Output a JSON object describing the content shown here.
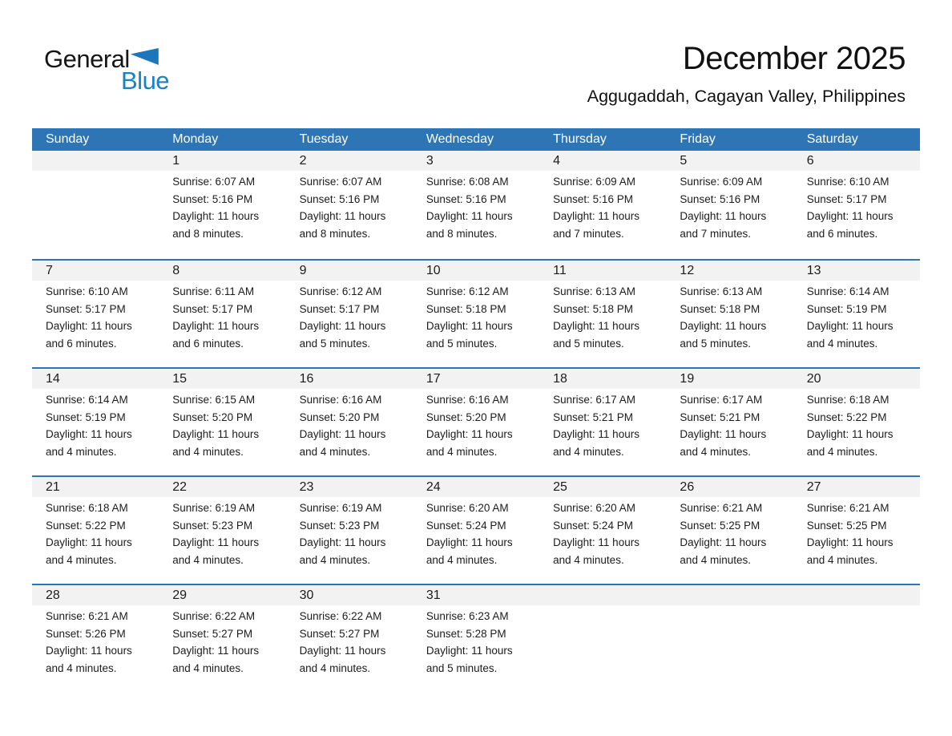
{
  "logo": {
    "word1": "General",
    "word2": "Blue",
    "triangle_icon": "blue-flag-triangle"
  },
  "header": {
    "title": "December 2025",
    "subtitle": "Aggugaddah, Cagayan Valley, Philippines"
  },
  "colors": {
    "header_blue": "#2E75B6",
    "row_border_blue": "#2E75B6",
    "day_band_gray": "#F2F2F2",
    "logo_blue": "#1B80C4",
    "logo_triangle_blue": "#1B76BB",
    "weekday_text": "#FFFFFF",
    "body_text": "#1C1C1C"
  },
  "calendar": {
    "weekdays": [
      "Sunday",
      "Monday",
      "Tuesday",
      "Wednesday",
      "Thursday",
      "Friday",
      "Saturday"
    ],
    "weeks": [
      [
        {
          "day": "",
          "lines": []
        },
        {
          "day": "1",
          "lines": [
            "Sunrise: 6:07 AM",
            "Sunset: 5:16 PM",
            "Daylight: 11 hours",
            "and 8 minutes."
          ]
        },
        {
          "day": "2",
          "lines": [
            "Sunrise: 6:07 AM",
            "Sunset: 5:16 PM",
            "Daylight: 11 hours",
            "and 8 minutes."
          ]
        },
        {
          "day": "3",
          "lines": [
            "Sunrise: 6:08 AM",
            "Sunset: 5:16 PM",
            "Daylight: 11 hours",
            "and 8 minutes."
          ]
        },
        {
          "day": "4",
          "lines": [
            "Sunrise: 6:09 AM",
            "Sunset: 5:16 PM",
            "Daylight: 11 hours",
            "and 7 minutes."
          ]
        },
        {
          "day": "5",
          "lines": [
            "Sunrise: 6:09 AM",
            "Sunset: 5:16 PM",
            "Daylight: 11 hours",
            "and 7 minutes."
          ]
        },
        {
          "day": "6",
          "lines": [
            "Sunrise: 6:10 AM",
            "Sunset: 5:17 PM",
            "Daylight: 11 hours",
            "and 6 minutes."
          ]
        }
      ],
      [
        {
          "day": "7",
          "lines": [
            "Sunrise: 6:10 AM",
            "Sunset: 5:17 PM",
            "Daylight: 11 hours",
            "and 6 minutes."
          ]
        },
        {
          "day": "8",
          "lines": [
            "Sunrise: 6:11 AM",
            "Sunset: 5:17 PM",
            "Daylight: 11 hours",
            "and 6 minutes."
          ]
        },
        {
          "day": "9",
          "lines": [
            "Sunrise: 6:12 AM",
            "Sunset: 5:17 PM",
            "Daylight: 11 hours",
            "and 5 minutes."
          ]
        },
        {
          "day": "10",
          "lines": [
            "Sunrise: 6:12 AM",
            "Sunset: 5:18 PM",
            "Daylight: 11 hours",
            "and 5 minutes."
          ]
        },
        {
          "day": "11",
          "lines": [
            "Sunrise: 6:13 AM",
            "Sunset: 5:18 PM",
            "Daylight: 11 hours",
            "and 5 minutes."
          ]
        },
        {
          "day": "12",
          "lines": [
            "Sunrise: 6:13 AM",
            "Sunset: 5:18 PM",
            "Daylight: 11 hours",
            "and 5 minutes."
          ]
        },
        {
          "day": "13",
          "lines": [
            "Sunrise: 6:14 AM",
            "Sunset: 5:19 PM",
            "Daylight: 11 hours",
            "and 4 minutes."
          ]
        }
      ],
      [
        {
          "day": "14",
          "lines": [
            "Sunrise: 6:14 AM",
            "Sunset: 5:19 PM",
            "Daylight: 11 hours",
            "and 4 minutes."
          ]
        },
        {
          "day": "15",
          "lines": [
            "Sunrise: 6:15 AM",
            "Sunset: 5:20 PM",
            "Daylight: 11 hours",
            "and 4 minutes."
          ]
        },
        {
          "day": "16",
          "lines": [
            "Sunrise: 6:16 AM",
            "Sunset: 5:20 PM",
            "Daylight: 11 hours",
            "and 4 minutes."
          ]
        },
        {
          "day": "17",
          "lines": [
            "Sunrise: 6:16 AM",
            "Sunset: 5:20 PM",
            "Daylight: 11 hours",
            "and 4 minutes."
          ]
        },
        {
          "day": "18",
          "lines": [
            "Sunrise: 6:17 AM",
            "Sunset: 5:21 PM",
            "Daylight: 11 hours",
            "and 4 minutes."
          ]
        },
        {
          "day": "19",
          "lines": [
            "Sunrise: 6:17 AM",
            "Sunset: 5:21 PM",
            "Daylight: 11 hours",
            "and 4 minutes."
          ]
        },
        {
          "day": "20",
          "lines": [
            "Sunrise: 6:18 AM",
            "Sunset: 5:22 PM",
            "Daylight: 11 hours",
            "and 4 minutes."
          ]
        }
      ],
      [
        {
          "day": "21",
          "lines": [
            "Sunrise: 6:18 AM",
            "Sunset: 5:22 PM",
            "Daylight: 11 hours",
            "and 4 minutes."
          ]
        },
        {
          "day": "22",
          "lines": [
            "Sunrise: 6:19 AM",
            "Sunset: 5:23 PM",
            "Daylight: 11 hours",
            "and 4 minutes."
          ]
        },
        {
          "day": "23",
          "lines": [
            "Sunrise: 6:19 AM",
            "Sunset: 5:23 PM",
            "Daylight: 11 hours",
            "and 4 minutes."
          ]
        },
        {
          "day": "24",
          "lines": [
            "Sunrise: 6:20 AM",
            "Sunset: 5:24 PM",
            "Daylight: 11 hours",
            "and 4 minutes."
          ]
        },
        {
          "day": "25",
          "lines": [
            "Sunrise: 6:20 AM",
            "Sunset: 5:24 PM",
            "Daylight: 11 hours",
            "and 4 minutes."
          ]
        },
        {
          "day": "26",
          "lines": [
            "Sunrise: 6:21 AM",
            "Sunset: 5:25 PM",
            "Daylight: 11 hours",
            "and 4 minutes."
          ]
        },
        {
          "day": "27",
          "lines": [
            "Sunrise: 6:21 AM",
            "Sunset: 5:25 PM",
            "Daylight: 11 hours",
            "and 4 minutes."
          ]
        }
      ],
      [
        {
          "day": "28",
          "lines": [
            "Sunrise: 6:21 AM",
            "Sunset: 5:26 PM",
            "Daylight: 11 hours",
            "and 4 minutes."
          ]
        },
        {
          "day": "29",
          "lines": [
            "Sunrise: 6:22 AM",
            "Sunset: 5:27 PM",
            "Daylight: 11 hours",
            "and 4 minutes."
          ]
        },
        {
          "day": "30",
          "lines": [
            "Sunrise: 6:22 AM",
            "Sunset: 5:27 PM",
            "Daylight: 11 hours",
            "and 4 minutes."
          ]
        },
        {
          "day": "31",
          "lines": [
            "Sunrise: 6:23 AM",
            "Sunset: 5:28 PM",
            "Daylight: 11 hours",
            "and 5 minutes."
          ]
        },
        {
          "day": "",
          "lines": []
        },
        {
          "day": "",
          "lines": []
        },
        {
          "day": "",
          "lines": []
        }
      ]
    ]
  }
}
